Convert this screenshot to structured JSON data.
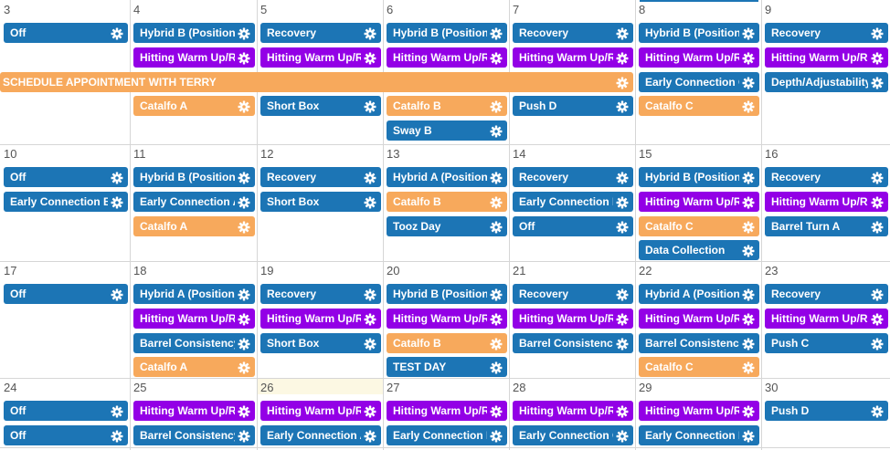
{
  "colors": {
    "blue": "#1c75b5",
    "purple": "#9300e6",
    "orange": "#f7a95c",
    "today": "#fcf8e3"
  },
  "gear_icon": "gear-icon",
  "today_day": "26",
  "weeks": [
    {
      "days": [
        "3",
        "4",
        "5",
        "6",
        "7",
        "8",
        "9"
      ]
    },
    {
      "days": [
        "10",
        "11",
        "12",
        "13",
        "14",
        "15",
        "16"
      ]
    },
    {
      "days": [
        "17",
        "18",
        "19",
        "20",
        "21",
        "22",
        "23"
      ]
    },
    {
      "days": [
        "24",
        "25",
        "26",
        "27",
        "28",
        "29",
        "30"
      ]
    }
  ],
  "events": [
    {
      "label": "Off",
      "color": "blue",
      "week": 0,
      "col": 0,
      "slot": 0
    },
    {
      "label": "Hybrid B (Position Pl",
      "color": "blue",
      "week": 0,
      "col": 1,
      "slot": 0
    },
    {
      "label": "Hitting Warm Up/Re",
      "color": "purple",
      "week": 0,
      "col": 1,
      "slot": 1
    },
    {
      "label": "Catalfo A",
      "color": "orange",
      "week": 0,
      "col": 1,
      "slot": 3
    },
    {
      "label": "Recovery",
      "color": "blue",
      "week": 0,
      "col": 2,
      "slot": 0
    },
    {
      "label": "Hitting Warm Up/Re",
      "color": "purple",
      "week": 0,
      "col": 2,
      "slot": 1
    },
    {
      "label": "Short Box",
      "color": "blue",
      "week": 0,
      "col": 2,
      "slot": 3
    },
    {
      "label": "Hybrid B (Position P",
      "color": "blue",
      "week": 0,
      "col": 3,
      "slot": 0
    },
    {
      "label": "Hitting Warm Up/Re",
      "color": "purple",
      "week": 0,
      "col": 3,
      "slot": 1
    },
    {
      "label": "Catalfo B",
      "color": "orange",
      "week": 0,
      "col": 3,
      "slot": 3
    },
    {
      "label": "Sway B",
      "color": "blue",
      "week": 0,
      "col": 3,
      "slot": 4
    },
    {
      "label": "Recovery",
      "color": "blue",
      "week": 0,
      "col": 4,
      "slot": 0
    },
    {
      "label": "Hitting Warm Up/Re",
      "color": "purple",
      "week": 0,
      "col": 4,
      "slot": 1
    },
    {
      "label": "Push D",
      "color": "blue",
      "week": 0,
      "col": 4,
      "slot": 3
    },
    {
      "label": "Hybrid B (Position Pl",
      "color": "blue",
      "week": 0,
      "col": 5,
      "slot": 0
    },
    {
      "label": "Hitting Warm Up/Re",
      "color": "purple",
      "week": 0,
      "col": 5,
      "slot": 1
    },
    {
      "label": "Early Connection C",
      "color": "blue",
      "week": 0,
      "col": 5,
      "slot": 2
    },
    {
      "label": "Catalfo C",
      "color": "orange",
      "week": 0,
      "col": 5,
      "slot": 3
    },
    {
      "label": "Recovery",
      "color": "blue",
      "week": 0,
      "col": 6,
      "slot": 0
    },
    {
      "label": "Hitting Warm Up/Re",
      "color": "purple",
      "week": 0,
      "col": 6,
      "slot": 1
    },
    {
      "label": "Depth/Adjustability",
      "color": "blue",
      "week": 0,
      "col": 6,
      "slot": 2
    },
    {
      "label": "SCHEDULE APPOINTMENT WITH TERRY",
      "color": "orange",
      "week": 0,
      "col": 0,
      "span": 5,
      "slot": 2,
      "banner": true
    },
    {
      "label": "Off",
      "color": "blue",
      "week": 1,
      "col": 0,
      "slot": 0
    },
    {
      "label": "Early Connection B",
      "color": "blue",
      "week": 1,
      "col": 0,
      "slot": 1
    },
    {
      "label": "Hybrid B (Position Pl",
      "color": "blue",
      "week": 1,
      "col": 1,
      "slot": 0
    },
    {
      "label": "Early Connection A",
      "color": "blue",
      "week": 1,
      "col": 1,
      "slot": 1
    },
    {
      "label": "Catalfo A",
      "color": "orange",
      "week": 1,
      "col": 1,
      "slot": 2
    },
    {
      "label": "Recovery",
      "color": "blue",
      "week": 1,
      "col": 2,
      "slot": 0
    },
    {
      "label": "Short Box",
      "color": "blue",
      "week": 1,
      "col": 2,
      "slot": 1
    },
    {
      "label": "Hybrid A (Position pl",
      "color": "blue",
      "week": 1,
      "col": 3,
      "slot": 0
    },
    {
      "label": "Catalfo B",
      "color": "orange",
      "week": 1,
      "col": 3,
      "slot": 1
    },
    {
      "label": "Tooz Day",
      "color": "blue",
      "week": 1,
      "col": 3,
      "slot": 2
    },
    {
      "label": "Recovery",
      "color": "blue",
      "week": 1,
      "col": 4,
      "slot": 0
    },
    {
      "label": "Early Connection D",
      "color": "blue",
      "week": 1,
      "col": 4,
      "slot": 1
    },
    {
      "label": "Off",
      "color": "blue",
      "week": 1,
      "col": 4,
      "slot": 2
    },
    {
      "label": "Hybrid B (Position Pl",
      "color": "blue",
      "week": 1,
      "col": 5,
      "slot": 0
    },
    {
      "label": "Hitting Warm Up/Re",
      "color": "purple",
      "week": 1,
      "col": 5,
      "slot": 1
    },
    {
      "label": "Catalfo C",
      "color": "orange",
      "week": 1,
      "col": 5,
      "slot": 2
    },
    {
      "label": "Data Collection",
      "color": "blue",
      "week": 1,
      "col": 5,
      "slot": 3
    },
    {
      "label": "Recovery",
      "color": "blue",
      "week": 1,
      "col": 6,
      "slot": 0
    },
    {
      "label": "Hitting Warm Up/Re",
      "color": "purple",
      "week": 1,
      "col": 6,
      "slot": 1
    },
    {
      "label": "Barrel Turn A",
      "color": "blue",
      "week": 1,
      "col": 6,
      "slot": 2
    },
    {
      "label": "Off",
      "color": "blue",
      "week": 2,
      "col": 0,
      "slot": 0
    },
    {
      "label": "Hybrid A (Position pl",
      "color": "blue",
      "week": 2,
      "col": 1,
      "slot": 0
    },
    {
      "label": "Hitting Warm Up/Re",
      "color": "purple",
      "week": 2,
      "col": 1,
      "slot": 1
    },
    {
      "label": "Barrel Consistency",
      "color": "blue",
      "week": 2,
      "col": 1,
      "slot": 2
    },
    {
      "label": "Catalfo A",
      "color": "orange",
      "week": 2,
      "col": 1,
      "slot": 3
    },
    {
      "label": "Recovery",
      "color": "blue",
      "week": 2,
      "col": 2,
      "slot": 0
    },
    {
      "label": "Hitting Warm Up/Re",
      "color": "purple",
      "week": 2,
      "col": 2,
      "slot": 1
    },
    {
      "label": "Short Box",
      "color": "blue",
      "week": 2,
      "col": 2,
      "slot": 2
    },
    {
      "label": "Hybrid B (Position P",
      "color": "blue",
      "week": 2,
      "col": 3,
      "slot": 0
    },
    {
      "label": "Hitting Warm Up/Re",
      "color": "purple",
      "week": 2,
      "col": 3,
      "slot": 1
    },
    {
      "label": "Catalfo B",
      "color": "orange",
      "week": 2,
      "col": 3,
      "slot": 2
    },
    {
      "label": "TEST DAY",
      "color": "blue",
      "week": 2,
      "col": 3,
      "slot": 3
    },
    {
      "label": "Recovery",
      "color": "blue",
      "week": 2,
      "col": 4,
      "slot": 0
    },
    {
      "label": "Hitting Warm Up/Re",
      "color": "purple",
      "week": 2,
      "col": 4,
      "slot": 1
    },
    {
      "label": "Barrel Consistency",
      "color": "blue",
      "week": 2,
      "col": 4,
      "slot": 2
    },
    {
      "label": "Hybrid A (Position pl",
      "color": "blue",
      "week": 2,
      "col": 5,
      "slot": 0
    },
    {
      "label": "Hitting Warm Up/Re",
      "color": "purple",
      "week": 2,
      "col": 5,
      "slot": 1
    },
    {
      "label": "Barrel Consistency",
      "color": "blue",
      "week": 2,
      "col": 5,
      "slot": 2
    },
    {
      "label": "Catalfo C",
      "color": "orange",
      "week": 2,
      "col": 5,
      "slot": 3
    },
    {
      "label": "Recovery",
      "color": "blue",
      "week": 2,
      "col": 6,
      "slot": 0
    },
    {
      "label": "Hitting Warm Up/Re",
      "color": "purple",
      "week": 2,
      "col": 6,
      "slot": 1
    },
    {
      "label": "Push C",
      "color": "blue",
      "week": 2,
      "col": 6,
      "slot": 2
    },
    {
      "label": "Off",
      "color": "blue",
      "week": 3,
      "col": 0,
      "slot": 0
    },
    {
      "label": "Off",
      "color": "blue",
      "week": 3,
      "col": 0,
      "slot": 1
    },
    {
      "label": "Hitting Warm Up/Re",
      "color": "purple",
      "week": 3,
      "col": 1,
      "slot": 0
    },
    {
      "label": "Barrel Consistency",
      "color": "blue",
      "week": 3,
      "col": 1,
      "slot": 1
    },
    {
      "label": "Hitting Warm Up/Re",
      "color": "purple",
      "week": 3,
      "col": 2,
      "slot": 0
    },
    {
      "label": "Early Connection A",
      "color": "blue",
      "week": 3,
      "col": 2,
      "slot": 1
    },
    {
      "label": "Hitting Warm Up/Re",
      "color": "purple",
      "week": 3,
      "col": 3,
      "slot": 0
    },
    {
      "label": "Early Connection B",
      "color": "blue",
      "week": 3,
      "col": 3,
      "slot": 1
    },
    {
      "label": "Hitting Warm Up/Re",
      "color": "purple",
      "week": 3,
      "col": 4,
      "slot": 0
    },
    {
      "label": "Early Connection C",
      "color": "blue",
      "week": 3,
      "col": 4,
      "slot": 1
    },
    {
      "label": "Hitting Warm Up/Re",
      "color": "purple",
      "week": 3,
      "col": 5,
      "slot": 0
    },
    {
      "label": "Early Connection D",
      "color": "blue",
      "week": 3,
      "col": 5,
      "slot": 1
    },
    {
      "label": "Push D",
      "color": "blue",
      "week": 3,
      "col": 6,
      "slot": 0
    }
  ]
}
